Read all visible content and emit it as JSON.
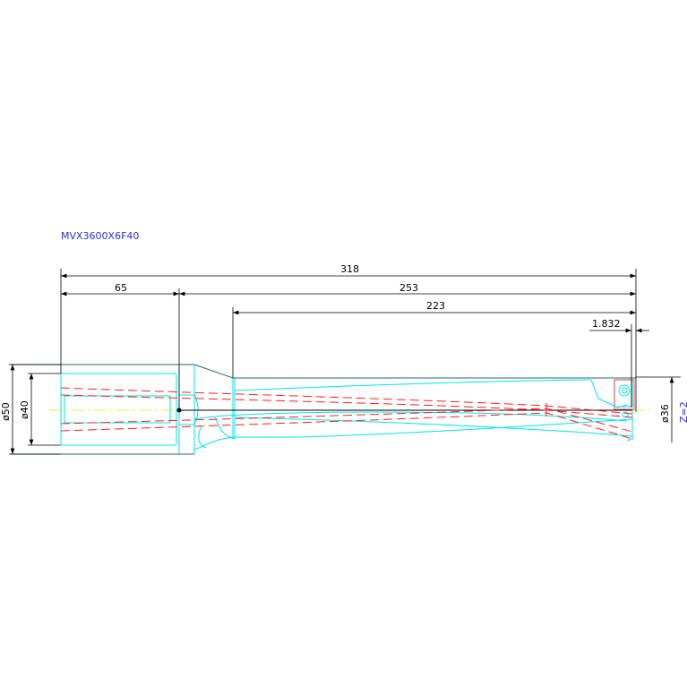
{
  "drawing": {
    "title": "MVX3600X6F40",
    "dimensions": {
      "overall_length": "318",
      "shank_length": "65",
      "body_length": "253",
      "flute_length": "223",
      "tip_offset": "1.832",
      "shank_diameter": "ø50",
      "inner_diameter": "ø40",
      "cutting_diameter": "ø36",
      "flutes": "Z=2"
    },
    "colors": {
      "title": "#3030e0",
      "outline": "#00e5ee",
      "dimension": "#000000",
      "coolant": "#ff2020",
      "centerline": "#e8e800"
    }
  }
}
